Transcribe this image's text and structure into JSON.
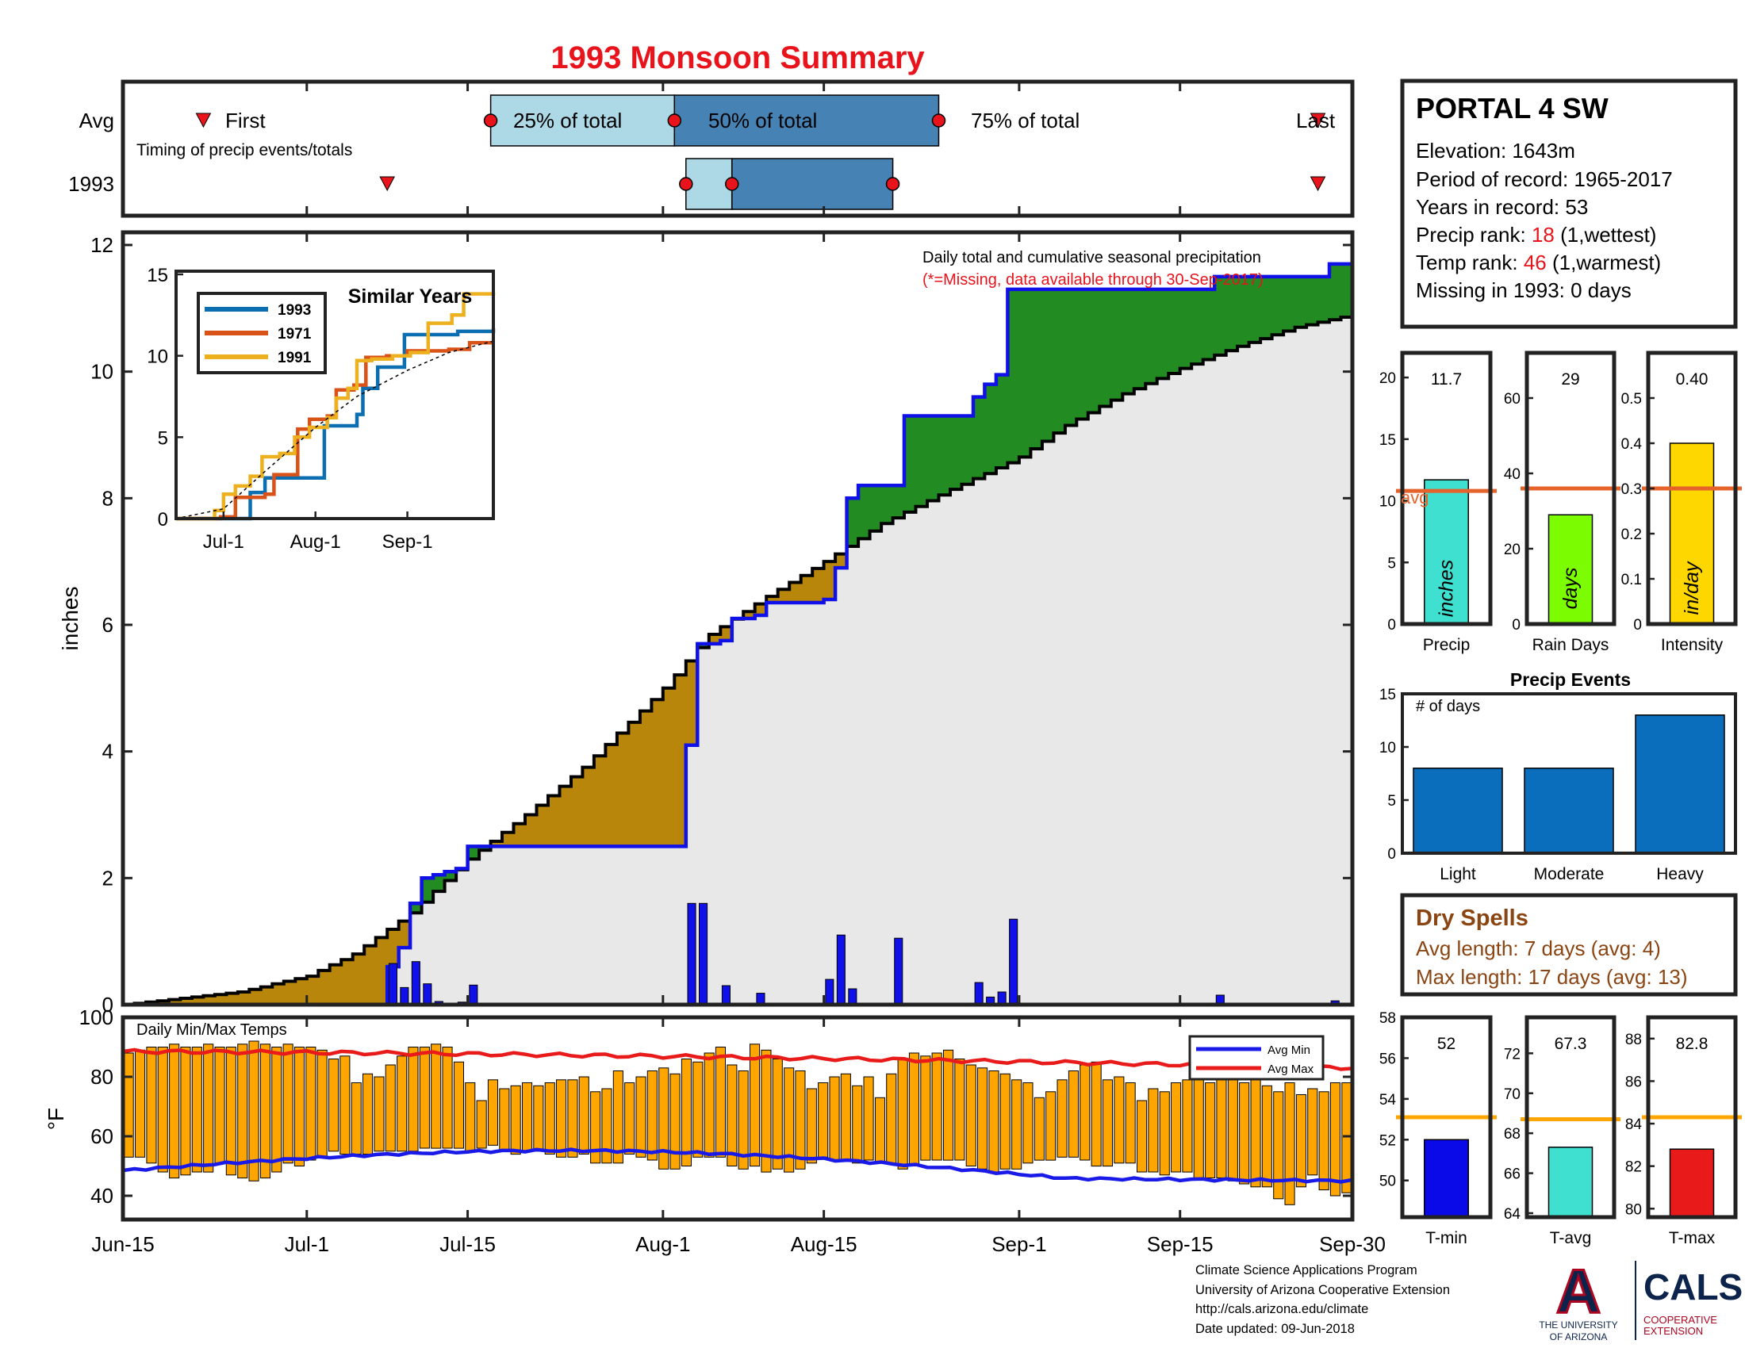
{
  "title": "1993 Monsoon Summary",
  "timing": {
    "label": "Timing of precip events/totals",
    "row_avg": "Avg",
    "row_year": "1993",
    "first_label": "First",
    "last_label": "Last",
    "q25_label": "25% of total",
    "q50_label": "50% of total",
    "q75_label": "75% of total",
    "avg": {
      "first": "2024-06-22",
      "p25": "2024-07-17",
      "p50": "2024-08-02",
      "p75": "2024-08-25",
      "last": "2024-09-27"
    },
    "year": {
      "first": "2024-07-08",
      "p25": "2024-08-03",
      "p50": "2024-08-07",
      "p75": "2024-08-21",
      "last": "2024-09-27"
    }
  },
  "station": {
    "name": "PORTAL 4 SW",
    "elevation_label": "Elevation: 1643m",
    "period_label": "Period of record: 1965-2017",
    "years_label": "Years in record: 53",
    "precip_rank_prefix": "Precip rank: ",
    "precip_rank": "18",
    "precip_rank_suffix": " (1,wettest)",
    "temp_rank_prefix": "Temp rank: ",
    "temp_rank": "46",
    "temp_rank_suffix": " (1,warmest)",
    "missing_label": "Missing in 1993: 0 days"
  },
  "main_chart": {
    "annotation": "Daily total and cumulative seasonal precipitation",
    "missing_note": "(*=Missing, data available through 30-Sep-2017)",
    "ylabel": "inches",
    "yticks": [
      "0",
      "2",
      "4",
      "6",
      "8",
      "10",
      "12"
    ],
    "xticks": [
      "Jun-15",
      "Jul-1",
      "Jul-15",
      "Aug-1",
      "Aug-15",
      "Sep-1",
      "Sep-15",
      "Sep-30"
    ]
  },
  "inset": {
    "title": "Similar Years",
    "yticks": [
      "0",
      "5",
      "10",
      "15"
    ],
    "xticks": [
      "Jul-1",
      "Aug-1",
      "Sep-1"
    ],
    "legend": [
      "1993",
      "1971",
      "1991"
    ]
  },
  "temps": {
    "label": "Daily Min/Max Temps",
    "ylabel": "°F",
    "yticks": [
      "40",
      "60",
      "80",
      "100"
    ],
    "legend_min": "Avg Min",
    "legend_max": "Avg Max"
  },
  "bars": {
    "precip": {
      "value_label": "11.7",
      "unit": "inches",
      "xlabel": "Precip",
      "avg_label": "avg",
      "yticks": [
        "0",
        "5",
        "10",
        "15",
        "20"
      ]
    },
    "rain_days": {
      "value_label": "29",
      "unit": "days",
      "xlabel": "Rain Days",
      "yticks": [
        "0",
        "20",
        "40",
        "60"
      ]
    },
    "intensity": {
      "value_label": "0.40",
      "unit": "in/day",
      "xlabel": "Intensity",
      "yticks": [
        "0",
        "0.1",
        "0.2",
        "0.3",
        "0.4",
        "0.5"
      ]
    }
  },
  "events": {
    "title": "Precip Events",
    "ylabel": "# of days",
    "yticks": [
      "0",
      "5",
      "10",
      "15"
    ],
    "categories": [
      "Light",
      "Moderate",
      "Heavy"
    ]
  },
  "dry_spells": {
    "title": "Dry Spells",
    "avg_length": "Avg length: 7 days (avg: 4)",
    "max_length": "Max length: 17 days (avg: 13)"
  },
  "temp_bars": {
    "tmin": {
      "value_label": "52",
      "xlabel": "T-min",
      "yticks": [
        "50",
        "52",
        "54",
        "56",
        "58"
      ]
    },
    "tavg": {
      "value_label": "67.3",
      "xlabel": "T-avg",
      "yticks": [
        "64",
        "66",
        "68",
        "70",
        "72"
      ]
    },
    "tmax": {
      "value_label": "82.8",
      "xlabel": "T-max",
      "yticks": [
        "80",
        "82",
        "84",
        "86",
        "88"
      ]
    }
  },
  "footer": {
    "line1": "Climate Science Applications Program",
    "line2": "University of Arizona Cooperative Extension",
    "line3": "http://cals.arizona.edu/climate",
    "line4": " Date updated: 09-Jun-2018"
  },
  "logos": {
    "ua_letter": "A",
    "ua_text1": "THE UNIVERSITY",
    "ua_text2": "OF ARIZONA",
    "cals_text": "CALS",
    "cals_sub1": "COOPERATIVE",
    "cals_sub2": "EXTENSION"
  },
  "colors": {
    "title": "#e8131b",
    "observed_line": "#1010e8",
    "deficit_fill": "#b8860b",
    "surplus_fill": "#228b22",
    "avg_area": "#e8e8e8",
    "temp_bar": "#ffa500",
    "avg_min": "#1a1ae8",
    "avg_max": "#e81a1a",
    "quartile_light": "#add8e6",
    "quartile_dark": "#4682b4",
    "events_bar": "#0a6ebd",
    "precip_bar": "#40e0d0",
    "raindays_bar": "#7cfc00",
    "intensity_bar": "#ffd700",
    "avg_marker": "#e5622b",
    "dry_spell_text": "#8b4513"
  },
  "chart_data": [
    {
      "type": "area",
      "name": "cumulative",
      "x_start": "2024-06-15",
      "x_end": "2024-09-30",
      "ylim": [
        0,
        12.2
      ],
      "avg_cumulative_points": [
        [
          "2024-06-15",
          0
        ],
        [
          "2024-06-20",
          0.1
        ],
        [
          "2024-06-25",
          0.2
        ],
        [
          "2024-07-01",
          0.45
        ],
        [
          "2024-07-05",
          0.8
        ],
        [
          "2024-07-10",
          1.45
        ],
        [
          "2024-07-15",
          2.3
        ],
        [
          "2024-07-20",
          3.0
        ],
        [
          "2024-07-25",
          3.75
        ],
        [
          "2024-08-01",
          5.0
        ],
        [
          "2024-08-05",
          5.85
        ],
        [
          "2024-08-10",
          6.45
        ],
        [
          "2024-08-15",
          7.0
        ],
        [
          "2024-08-20",
          7.6
        ],
        [
          "2024-08-25",
          8.05
        ],
        [
          "2024-09-01",
          8.65
        ],
        [
          "2024-09-05",
          9.15
        ],
        [
          "2024-09-10",
          9.65
        ],
        [
          "2024-09-15",
          10.05
        ],
        [
          "2024-09-20",
          10.4
        ],
        [
          "2024-09-25",
          10.7
        ],
        [
          "2024-09-30",
          10.9
        ]
      ],
      "observed_cumulative_points": [
        [
          "2024-06-15",
          0
        ],
        [
          "2024-07-07",
          0
        ],
        [
          "2024-07-08",
          0.6
        ],
        [
          "2024-07-09",
          0.9
        ],
        [
          "2024-07-10",
          1.6
        ],
        [
          "2024-07-11",
          2.0
        ],
        [
          "2024-07-12",
          2.05
        ],
        [
          "2024-07-13",
          2.1
        ],
        [
          "2024-07-14",
          2.15
        ],
        [
          "2024-07-15",
          2.5
        ],
        [
          "2024-08-02",
          2.5
        ],
        [
          "2024-08-03",
          4.1
        ],
        [
          "2024-08-04",
          5.7
        ],
        [
          "2024-08-06",
          5.75
        ],
        [
          "2024-08-07",
          6.1
        ],
        [
          "2024-08-08",
          6.1
        ],
        [
          "2024-08-09",
          6.15
        ],
        [
          "2024-08-10",
          6.35
        ],
        [
          "2024-08-15",
          6.4
        ],
        [
          "2024-08-16",
          6.9
        ],
        [
          "2024-08-17",
          8.0
        ],
        [
          "2024-08-18",
          8.2
        ],
        [
          "2024-08-21",
          8.2
        ],
        [
          "2024-08-22",
          9.3
        ],
        [
          "2024-08-27",
          9.3
        ],
        [
          "2024-08-28",
          9.6
        ],
        [
          "2024-08-29",
          9.8
        ],
        [
          "2024-08-30",
          9.95
        ],
        [
          "2024-08-31",
          11.3
        ],
        [
          "2024-09-17",
          11.3
        ],
        [
          "2024-09-18",
          11.5
        ],
        [
          "2024-09-27",
          11.5
        ],
        [
          "2024-09-28",
          11.7
        ],
        [
          "2024-09-30",
          11.7
        ]
      ]
    },
    {
      "type": "bar",
      "name": "daily_precip",
      "dates": [
        "2024-07-08",
        "2024-07-09",
        "2024-07-10",
        "2024-07-11",
        "2024-07-12",
        "2024-07-14",
        "2024-07-15",
        "2024-08-03",
        "2024-08-04",
        "2024-08-06",
        "2024-08-09",
        "2024-08-15",
        "2024-08-16",
        "2024-08-17",
        "2024-08-21",
        "2024-08-28",
        "2024-08-29",
        "2024-08-30",
        "2024-08-31",
        "2024-09-18",
        "2024-09-28"
      ],
      "values": [
        0.65,
        0.27,
        0.68,
        0.33,
        0.05,
        0.04,
        0.31,
        1.6,
        1.6,
        0.3,
        0.18,
        0.4,
        1.1,
        0.25,
        1.05,
        0.35,
        0.12,
        0.2,
        1.35,
        0.15,
        0.06
      ]
    },
    {
      "type": "line",
      "name": "similar_years",
      "ylim": [
        0,
        15
      ],
      "x_start": "2024-06-15",
      "x_end": "2024-09-30",
      "series": [
        {
          "name": "1993",
          "points": [
            [
              "2024-06-15",
              0
            ],
            [
              "2024-07-07",
              0
            ],
            [
              "2024-07-10",
              1.6
            ],
            [
              "2024-07-15",
              2.5
            ],
            [
              "2024-08-02",
              2.5
            ],
            [
              "2024-08-04",
              5.7
            ],
            [
              "2024-08-15",
              6.4
            ],
            [
              "2024-08-17",
              8.0
            ],
            [
              "2024-08-22",
              9.3
            ],
            [
              "2024-08-31",
              11.3
            ],
            [
              "2024-09-18",
              11.5
            ],
            [
              "2024-09-30",
              11.7
            ]
          ]
        },
        {
          "name": "1971",
          "points": [
            [
              "2024-06-15",
              0
            ],
            [
              "2024-06-30",
              0.1
            ],
            [
              "2024-07-05",
              1.3
            ],
            [
              "2024-07-15",
              1.5
            ],
            [
              "2024-07-18",
              2.7
            ],
            [
              "2024-07-24",
              2.7
            ],
            [
              "2024-07-26",
              5.5
            ],
            [
              "2024-07-30",
              6.1
            ],
            [
              "2024-08-05",
              6.3
            ],
            [
              "2024-08-08",
              7.9
            ],
            [
              "2024-08-14",
              8.2
            ],
            [
              "2024-08-18",
              9.9
            ],
            [
              "2024-08-25",
              10.0
            ],
            [
              "2024-09-01",
              10.3
            ],
            [
              "2024-09-15",
              10.4
            ],
            [
              "2024-09-22",
              10.8
            ],
            [
              "2024-09-30",
              10.8
            ]
          ]
        },
        {
          "name": "1991",
          "points": [
            [
              "2024-06-15",
              0
            ],
            [
              "2024-06-28",
              0.5
            ],
            [
              "2024-07-01",
              1.5
            ],
            [
              "2024-07-05",
              2.0
            ],
            [
              "2024-07-10",
              2.6
            ],
            [
              "2024-07-14",
              3.8
            ],
            [
              "2024-07-20",
              4.0
            ],
            [
              "2024-07-25",
              5.0
            ],
            [
              "2024-07-30",
              5.6
            ],
            [
              "2024-08-05",
              6.2
            ],
            [
              "2024-08-08",
              7.4
            ],
            [
              "2024-08-12",
              8.0
            ],
            [
              "2024-08-15",
              9.7
            ],
            [
              "2024-08-20",
              9.8
            ],
            [
              "2024-08-27",
              10.0
            ],
            [
              "2024-09-02",
              10.2
            ],
            [
              "2024-09-08",
              12.0
            ],
            [
              "2024-09-16",
              12.5
            ],
            [
              "2024-09-20",
              13.8
            ],
            [
              "2024-09-30",
              13.9
            ]
          ]
        },
        {
          "name": "avg",
          "points": [
            [
              "2024-06-15",
              0
            ],
            [
              "2024-07-01",
              0.6
            ],
            [
              "2024-07-15",
              2.9
            ],
            [
              "2024-08-01",
              5.6
            ],
            [
              "2024-08-15",
              7.5
            ],
            [
              "2024-09-01",
              9.1
            ],
            [
              "2024-09-15",
              10.2
            ],
            [
              "2024-09-30",
              10.9
            ]
          ]
        }
      ]
    },
    {
      "type": "bar",
      "name": "daily_temps",
      "ylim": [
        32,
        100
      ],
      "x_start": "2024-06-15",
      "tmax": [
        88,
        89,
        90,
        90,
        91,
        90,
        90,
        91,
        90,
        90,
        91,
        92,
        91,
        90,
        91,
        90,
        90,
        89,
        86,
        87,
        78,
        81,
        80,
        84,
        87,
        90,
        90,
        91,
        90,
        85,
        78,
        72,
        79,
        76,
        77,
        78,
        77,
        78,
        79,
        79,
        80,
        75,
        76,
        82,
        78,
        80,
        82,
        83,
        81,
        86,
        85,
        88,
        90,
        84,
        82,
        91,
        89,
        86,
        83,
        82,
        76,
        78,
        80,
        81,
        77,
        80,
        73,
        81,
        86,
        88,
        87,
        88,
        89,
        86,
        84,
        83,
        82,
        81,
        79,
        78,
        73,
        75,
        79,
        82,
        84,
        85,
        79,
        80,
        78,
        72,
        76,
        75,
        78,
        79,
        80,
        78,
        80,
        80,
        78,
        81,
        77,
        75,
        78,
        74,
        76,
        75,
        78,
        78
      ],
      "tmin": [
        53,
        53,
        51,
        48,
        46,
        47,
        48,
        48,
        51,
        47,
        46,
        45,
        46,
        48,
        51,
        50,
        52,
        53,
        55,
        54,
        54,
        54,
        55,
        55,
        55,
        55,
        56,
        56,
        56,
        56,
        55,
        56,
        57,
        55,
        54,
        55,
        55,
        54,
        53,
        53,
        54,
        51,
        51,
        51,
        54,
        53,
        52,
        49,
        49,
        50,
        53,
        53,
        53,
        50,
        49,
        50,
        48,
        49,
        48,
        49,
        51,
        53,
        52,
        52,
        51,
        52,
        51,
        51,
        49,
        50,
        52,
        52,
        52,
        52,
        50,
        49,
        48,
        49,
        49,
        51,
        52,
        52,
        53,
        53,
        52,
        50,
        50,
        51,
        51,
        48,
        48,
        47,
        48,
        48,
        46,
        46,
        46,
        45,
        44,
        43,
        43,
        39,
        37,
        43,
        47,
        42,
        40,
        41
      ]
    },
    {
      "type": "bar",
      "name": "season_precip",
      "categories": [
        "Precip"
      ],
      "values": [
        11.7
      ],
      "avg": 10.8,
      "ylim": [
        0,
        22
      ]
    },
    {
      "type": "bar",
      "name": "season_rain_days",
      "categories": [
        "Rain Days"
      ],
      "values": [
        29
      ],
      "avg": 36,
      "ylim": [
        0,
        72
      ]
    },
    {
      "type": "bar",
      "name": "season_intensity",
      "categories": [
        "Intensity"
      ],
      "values": [
        0.4
      ],
      "avg": 0.3,
      "ylim": [
        0,
        0.6
      ]
    },
    {
      "type": "bar",
      "name": "precip_events",
      "title": "Precip Events",
      "categories": [
        "Light",
        "Moderate",
        "Heavy"
      ],
      "values": [
        8,
        8,
        13
      ],
      "ylim": [
        0,
        15
      ]
    },
    {
      "type": "bar",
      "name": "season_tmin",
      "categories": [
        "T-min"
      ],
      "values": [
        52
      ],
      "avg": 53.1,
      "ylim": [
        48.2,
        58
      ]
    },
    {
      "type": "bar",
      "name": "season_tavg",
      "categories": [
        "T-avg"
      ],
      "values": [
        67.3
      ],
      "avg": 68.7,
      "ylim": [
        63.8,
        73.8
      ]
    },
    {
      "type": "bar",
      "name": "season_tmax",
      "categories": [
        "T-max"
      ],
      "values": [
        82.8
      ],
      "avg": 84.3,
      "ylim": [
        79.6,
        89
      ]
    }
  ]
}
